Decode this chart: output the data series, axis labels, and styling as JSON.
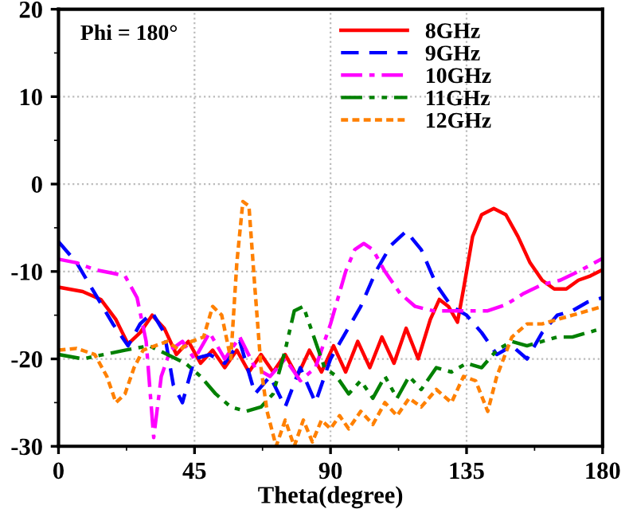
{
  "chart_data": {
    "type": "line",
    "xlabel": "Theta(degree)",
    "annotations": [
      "Phi = 180°"
    ],
    "xlim": [
      0,
      180
    ],
    "xticks": [
      0,
      45,
      90,
      135,
      180
    ],
    "ylim": [
      -30,
      20
    ],
    "yticks": [
      -30,
      -20,
      -10,
      0,
      10,
      20
    ],
    "grid": true,
    "legend": "top right",
    "series": [
      {
        "name": "8GHz",
        "color": "#ff0000",
        "line_style": "solid",
        "x": [
          0,
          8,
          14,
          19,
          23,
          27,
          31,
          35,
          39,
          43,
          47,
          51,
          55,
          59,
          63,
          67,
          71,
          75,
          79,
          83,
          87,
          91,
          95,
          99,
          103,
          107,
          111,
          115,
          119,
          123,
          126,
          129,
          132,
          134,
          137,
          140,
          144,
          148,
          152,
          156,
          160,
          164,
          168,
          172,
          176,
          180
        ],
        "values": [
          -11.8,
          -12.3,
          -13.2,
          -15.5,
          -18.3,
          -17,
          -15,
          -16.5,
          -19.5,
          -18,
          -20.5,
          -19,
          -21,
          -19,
          -21.5,
          -19.5,
          -21.5,
          -19.5,
          -22,
          -19,
          -21.5,
          -18.5,
          -21.5,
          -18,
          -21,
          -17.5,
          -20.5,
          -16.5,
          -20,
          -15.5,
          -13.2,
          -14,
          -15.8,
          -12,
          -6,
          -3.5,
          -2.8,
          -3.5,
          -6,
          -9,
          -11,
          -12,
          -12,
          -11,
          -10.5,
          -9.8
        ]
      },
      {
        "name": "9GHz",
        "color": "#0000ff",
        "line_style": "dashed",
        "x": [
          0,
          6,
          12,
          18,
          23,
          27,
          31,
          35,
          38,
          41,
          45,
          50,
          55,
          60,
          65,
          70,
          75,
          80,
          85,
          90,
          95,
          100,
          105,
          110,
          115,
          120,
          125,
          130,
          135,
          140,
          145,
          150,
          155,
          160,
          165,
          170,
          175,
          180
        ],
        "values": [
          -6.6,
          -9,
          -12.5,
          -16,
          -18.5,
          -16,
          -14.7,
          -17,
          -23,
          -25,
          -20,
          -19.5,
          -20.5,
          -18,
          -24,
          -22,
          -25.5,
          -21,
          -25,
          -20,
          -17,
          -14,
          -10,
          -7,
          -5.4,
          -7.5,
          -11.5,
          -14,
          -15,
          -17,
          -19.5,
          -18.5,
          -20,
          -17,
          -15,
          -14.5,
          -13.5,
          -13
        ]
      },
      {
        "name": "10GHz",
        "color": "#ff00ff",
        "line_style": "dashdot",
        "x": [
          0,
          6,
          12,
          18,
          22,
          26,
          29,
          31.5,
          34,
          37,
          41,
          45,
          50,
          55,
          60,
          65,
          70,
          75,
          80,
          85,
          90,
          95,
          98,
          101,
          104,
          108,
          113,
          118,
          124,
          130,
          136,
          142,
          148,
          154,
          160,
          166,
          172,
          180
        ],
        "values": [
          -8.6,
          -9,
          -9.8,
          -10.2,
          -10.5,
          -13,
          -18,
          -29,
          -22,
          -19,
          -18,
          -20,
          -17,
          -20,
          -17.5,
          -21,
          -22,
          -20,
          -22.5,
          -21,
          -16,
          -10,
          -7.5,
          -6.8,
          -7.5,
          -10,
          -12.5,
          -14,
          -14.5,
          -14.5,
          -14.5,
          -14.5,
          -13.8,
          -12.5,
          -11.5,
          -11,
          -10,
          -8.5
        ]
      },
      {
        "name": "11GHz",
        "color": "#008000",
        "line_style": "dashdotdot",
        "x": [
          0,
          8,
          15,
          22,
          30,
          36,
          42,
          47,
          52,
          57,
          62,
          67,
          71,
          75,
          78,
          81,
          84,
          88,
          92,
          96,
          100,
          104,
          108,
          112,
          116,
          120,
          125,
          130,
          135,
          140,
          145,
          150,
          155,
          160,
          165,
          170,
          175,
          180
        ],
        "values": [
          -19.5,
          -20,
          -19.5,
          -19,
          -18.5,
          -19.5,
          -20.5,
          -22,
          -24,
          -25.5,
          -26,
          -25.5,
          -24,
          -19,
          -14.5,
          -14,
          -17,
          -21,
          -22,
          -24,
          -22.5,
          -24.5,
          -22,
          -24.5,
          -22,
          -23.5,
          -21,
          -21.5,
          -20.5,
          -21,
          -19,
          -18,
          -18.5,
          -18,
          -17.5,
          -17.5,
          -17,
          -16.5
        ]
      },
      {
        "name": "12GHz",
        "color": "#ff8000",
        "line_style": "dotted",
        "x": [
          0,
          6,
          12,
          16,
          19,
          22,
          25,
          28,
          32,
          36,
          40,
          44,
          48,
          51,
          54,
          57,
          59,
          61,
          63,
          65,
          67,
          69,
          72,
          75,
          78,
          81,
          84,
          87,
          90,
          93,
          96,
          100,
          104,
          108,
          112,
          116,
          120,
          125,
          130,
          134,
          138,
          142,
          145,
          150,
          155,
          160,
          165,
          170,
          180
        ],
        "values": [
          -19,
          -18.8,
          -19.5,
          -22,
          -25,
          -24,
          -21,
          -19,
          -18.5,
          -18,
          -19,
          -18,
          -17.5,
          -14,
          -15,
          -20,
          -9,
          -2,
          -2.5,
          -12,
          -21,
          -26,
          -30,
          -27,
          -30,
          -27,
          -29.5,
          -27,
          -28,
          -26.5,
          -28,
          -26,
          -27.5,
          -25,
          -26.5,
          -24.5,
          -25.5,
          -23.5,
          -25,
          -22,
          -22.5,
          -26,
          -22,
          -17.5,
          -16,
          -16,
          -15.5,
          -15,
          -14
        ]
      }
    ]
  }
}
